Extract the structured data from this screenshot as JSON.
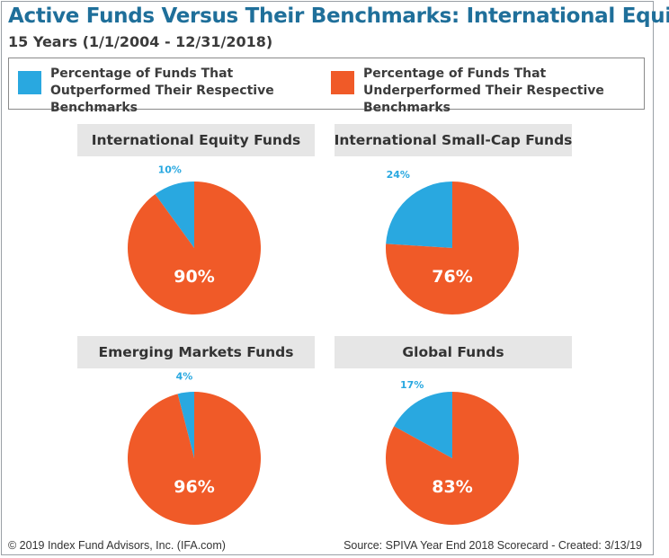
{
  "header": {
    "title": "Active Funds Versus Their Benchmarks: International Equity",
    "subtitle": "15 Years (1/1/2004 - 12/31/2018)"
  },
  "legend": [
    {
      "label": "Percentage of Funds That Outperformed Their Respective Benchmarks",
      "color": "#29a8e0"
    },
    {
      "label": "Percentage of Funds That Underperformed Their Respective Benchmarks",
      "color": "#f05a28"
    }
  ],
  "colors": {
    "outperformed": "#29a8e0",
    "underperformed": "#f05a28"
  },
  "chart_data": [
    {
      "type": "pie",
      "title": "International Equity Funds",
      "slices": [
        {
          "label": "Outperformed",
          "value": 10,
          "display": "10%"
        },
        {
          "label": "Underperformed",
          "value": 90,
          "display": "90%"
        }
      ]
    },
    {
      "type": "pie",
      "title": "International Small-Cap Funds",
      "slices": [
        {
          "label": "Outperformed",
          "value": 24,
          "display": "24%"
        },
        {
          "label": "Underperformed",
          "value": 76,
          "display": "76%"
        }
      ]
    },
    {
      "type": "pie",
      "title": "Emerging Markets Funds",
      "slices": [
        {
          "label": "Outperformed",
          "value": 4,
          "display": "4%"
        },
        {
          "label": "Underperformed",
          "value": 96,
          "display": "96%"
        }
      ]
    },
    {
      "type": "pie",
      "title": "Global Funds",
      "slices": [
        {
          "label": "Outperformed",
          "value": 17,
          "display": "17%"
        },
        {
          "label": "Underperformed",
          "value": 83,
          "display": "83%"
        }
      ]
    }
  ],
  "footer": {
    "left": "© 2019 Index Fund Advisors, Inc. (IFA.com)",
    "right": "Source: SPIVA Year End 2018 Scorecard - Created: 3/13/19"
  }
}
